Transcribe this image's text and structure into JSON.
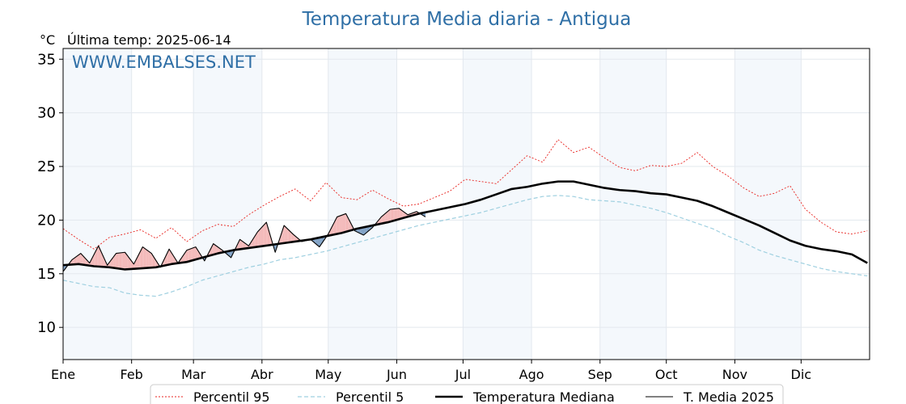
{
  "chart_data": {
    "type": "line",
    "title": "Temperatura Media diaria - Antigua",
    "unit_label": "°C",
    "last_temp_label": "Última temp: 2025-06-14",
    "watermark": "WWW.EMBALSES.NET",
    "ylim": [
      7,
      36
    ],
    "yticks": [
      10,
      15,
      20,
      25,
      30,
      35
    ],
    "xlim": [
      1,
      366
    ],
    "months": [
      {
        "label": "Ene",
        "day": 1
      },
      {
        "label": "Feb",
        "day": 32
      },
      {
        "label": "Mar",
        "day": 60
      },
      {
        "label": "Abr",
        "day": 91
      },
      {
        "label": "May",
        "day": 121
      },
      {
        "label": "Jun",
        "day": 152
      },
      {
        "label": "Jul",
        "day": 182
      },
      {
        "label": "Ago",
        "day": 213
      },
      {
        "label": "Sep",
        "day": 244
      },
      {
        "label": "Oct",
        "day": 274
      },
      {
        "label": "Nov",
        "day": 305
      },
      {
        "label": "Dic",
        "day": 335
      }
    ],
    "shaded_months": [
      "Ene",
      "Mar",
      "May",
      "Jul",
      "Sep",
      "Nov"
    ],
    "grid": true,
    "legend_position": "bottom",
    "series": [
      {
        "name": "Percentil 95",
        "key": "p95",
        "color": "#e8231f",
        "style": "dotted",
        "x": [
          1,
          8,
          15,
          22,
          29,
          36,
          43,
          50,
          57,
          64,
          71,
          78,
          85,
          92,
          99,
          106,
          113,
          120,
          127,
          134,
          141,
          148,
          155,
          162,
          169,
          176,
          183,
          190,
          197,
          204,
          211,
          218,
          225,
          232,
          239,
          246,
          253,
          260,
          267,
          274,
          281,
          288,
          295,
          302,
          309,
          316,
          323,
          330,
          337,
          344,
          351,
          358,
          365
        ],
        "values": [
          19.2,
          18.2,
          17.3,
          18.4,
          18.7,
          19.1,
          18.3,
          19.3,
          18.0,
          19.0,
          19.6,
          19.4,
          20.5,
          21.4,
          22.2,
          22.9,
          21.8,
          23.5,
          22.1,
          21.9,
          22.8,
          22.0,
          21.3,
          21.5,
          22.1,
          22.7,
          23.8,
          23.6,
          23.4,
          24.7,
          26.0,
          25.4,
          27.5,
          26.3,
          26.8,
          25.8,
          24.9,
          24.6,
          25.1,
          25.0,
          25.3,
          26.3,
          25.0,
          24.1,
          23.0,
          22.2,
          22.5,
          23.2,
          21.0,
          19.8,
          18.9,
          18.7,
          19.0
        ]
      },
      {
        "name": "Percentil 5",
        "key": "p5",
        "color": "#9fd0e0",
        "style": "dashed",
        "x": [
          1,
          8,
          15,
          22,
          29,
          36,
          43,
          50,
          57,
          64,
          71,
          78,
          85,
          92,
          99,
          106,
          113,
          120,
          127,
          134,
          141,
          148,
          155,
          162,
          169,
          176,
          183,
          190,
          197,
          204,
          211,
          218,
          225,
          232,
          239,
          246,
          253,
          260,
          267,
          274,
          281,
          288,
          295,
          302,
          309,
          316,
          323,
          330,
          337,
          344,
          351,
          358,
          365
        ],
        "values": [
          14.4,
          14.1,
          13.8,
          13.7,
          13.2,
          13.0,
          12.9,
          13.3,
          13.8,
          14.4,
          14.8,
          15.2,
          15.6,
          15.9,
          16.3,
          16.5,
          16.8,
          17.1,
          17.5,
          17.9,
          18.3,
          18.7,
          19.1,
          19.5,
          19.8,
          20.1,
          20.4,
          20.7,
          21.1,
          21.5,
          21.9,
          22.2,
          22.3,
          22.2,
          21.9,
          21.8,
          21.7,
          21.4,
          21.1,
          20.7,
          20.2,
          19.7,
          19.2,
          18.5,
          17.9,
          17.2,
          16.7,
          16.3,
          15.9,
          15.5,
          15.2,
          15.0,
          14.8
        ]
      },
      {
        "name": "Temperatura Mediana",
        "key": "median",
        "color": "#000000",
        "style": "thick",
        "x": [
          1,
          8,
          15,
          22,
          29,
          36,
          43,
          50,
          57,
          64,
          71,
          78,
          85,
          92,
          99,
          106,
          113,
          120,
          127,
          134,
          141,
          148,
          155,
          162,
          169,
          176,
          183,
          190,
          197,
          204,
          211,
          218,
          225,
          232,
          239,
          246,
          253,
          260,
          267,
          274,
          281,
          288,
          295,
          302,
          309,
          316,
          323,
          330,
          337,
          344,
          351,
          358,
          365
        ],
        "values": [
          15.8,
          15.9,
          15.7,
          15.6,
          15.4,
          15.5,
          15.6,
          15.9,
          16.1,
          16.5,
          16.9,
          17.2,
          17.4,
          17.6,
          17.8,
          18.0,
          18.2,
          18.5,
          18.8,
          19.2,
          19.5,
          19.8,
          20.2,
          20.6,
          20.9,
          21.2,
          21.5,
          21.9,
          22.4,
          22.9,
          23.1,
          23.4,
          23.6,
          23.6,
          23.3,
          23.0,
          22.8,
          22.7,
          22.5,
          22.4,
          22.1,
          21.8,
          21.3,
          20.7,
          20.1,
          19.5,
          18.8,
          18.1,
          17.6,
          17.3,
          17.1,
          16.8,
          16.0
        ]
      },
      {
        "name": "T. Media 2025",
        "key": "y2025",
        "color": "#000000",
        "style": "thin",
        "x": [
          1,
          5,
          9,
          13,
          17,
          21,
          25,
          29,
          33,
          37,
          41,
          45,
          49,
          53,
          57,
          61,
          65,
          69,
          73,
          77,
          81,
          85,
          89,
          93,
          97,
          101,
          105,
          109,
          113,
          117,
          121,
          125,
          129,
          133,
          137,
          141,
          145,
          149,
          153,
          157,
          161,
          165
        ],
        "values": [
          15.2,
          16.3,
          16.9,
          16.0,
          17.6,
          15.8,
          16.9,
          17.0,
          15.9,
          17.5,
          16.9,
          15.6,
          17.3,
          16.0,
          17.2,
          17.5,
          16.2,
          17.8,
          17.2,
          16.5,
          18.2,
          17.6,
          18.9,
          19.8,
          17.0,
          19.5,
          18.7,
          18.0,
          18.2,
          17.5,
          18.7,
          20.3,
          20.6,
          19.0,
          18.6,
          19.3,
          20.3,
          21.0,
          21.1,
          20.5,
          20.8,
          20.3
        ]
      }
    ]
  }
}
